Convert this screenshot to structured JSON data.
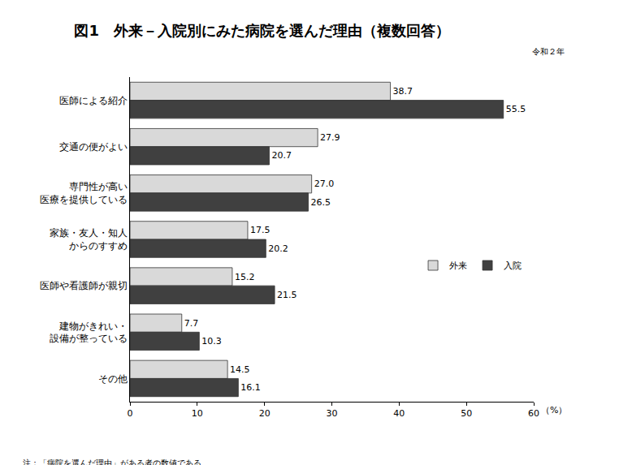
{
  "chart_data": {
    "type": "bar",
    "orientation": "horizontal",
    "title": "図1　外来－入院別にみた病院を選んだ理由（複数回答）",
    "subtitle": "令和２年",
    "xlabel": "（%）",
    "annotations": [
      "注：「病院を選んだ理由」がある者の数値である。"
    ],
    "categories": [
      "医師による紹介",
      "交通の便がよい",
      "専門性が高い\n医療を提供している",
      "家族・友人・知人\nからのすすめ",
      "医師や看護師が親切",
      "建物がきれい・\n設備が整っている",
      "その他"
    ],
    "series": [
      {
        "name": "外来",
        "color": "#d9d9d9",
        "values": [
          38.7,
          27.9,
          27.0,
          17.5,
          15.2,
          7.7,
          14.5
        ],
        "value_labels": [
          "38.7",
          "27.9",
          "27.0",
          "17.5",
          "15.2",
          "7.7",
          "14.5"
        ]
      },
      {
        "name": "入院",
        "color": "#404040",
        "values": [
          55.5,
          20.7,
          26.5,
          20.2,
          21.5,
          10.3,
          16.1
        ],
        "value_labels": [
          "55.5",
          "20.7",
          "26.5",
          "20.2",
          "21.5",
          "10.3",
          "16.1"
        ]
      }
    ],
    "xlim": [
      0,
      60
    ],
    "xticks": [
      0,
      10,
      20,
      30,
      40,
      50,
      60
    ],
    "grid": false,
    "legend": "right",
    "data_labels": true
  }
}
